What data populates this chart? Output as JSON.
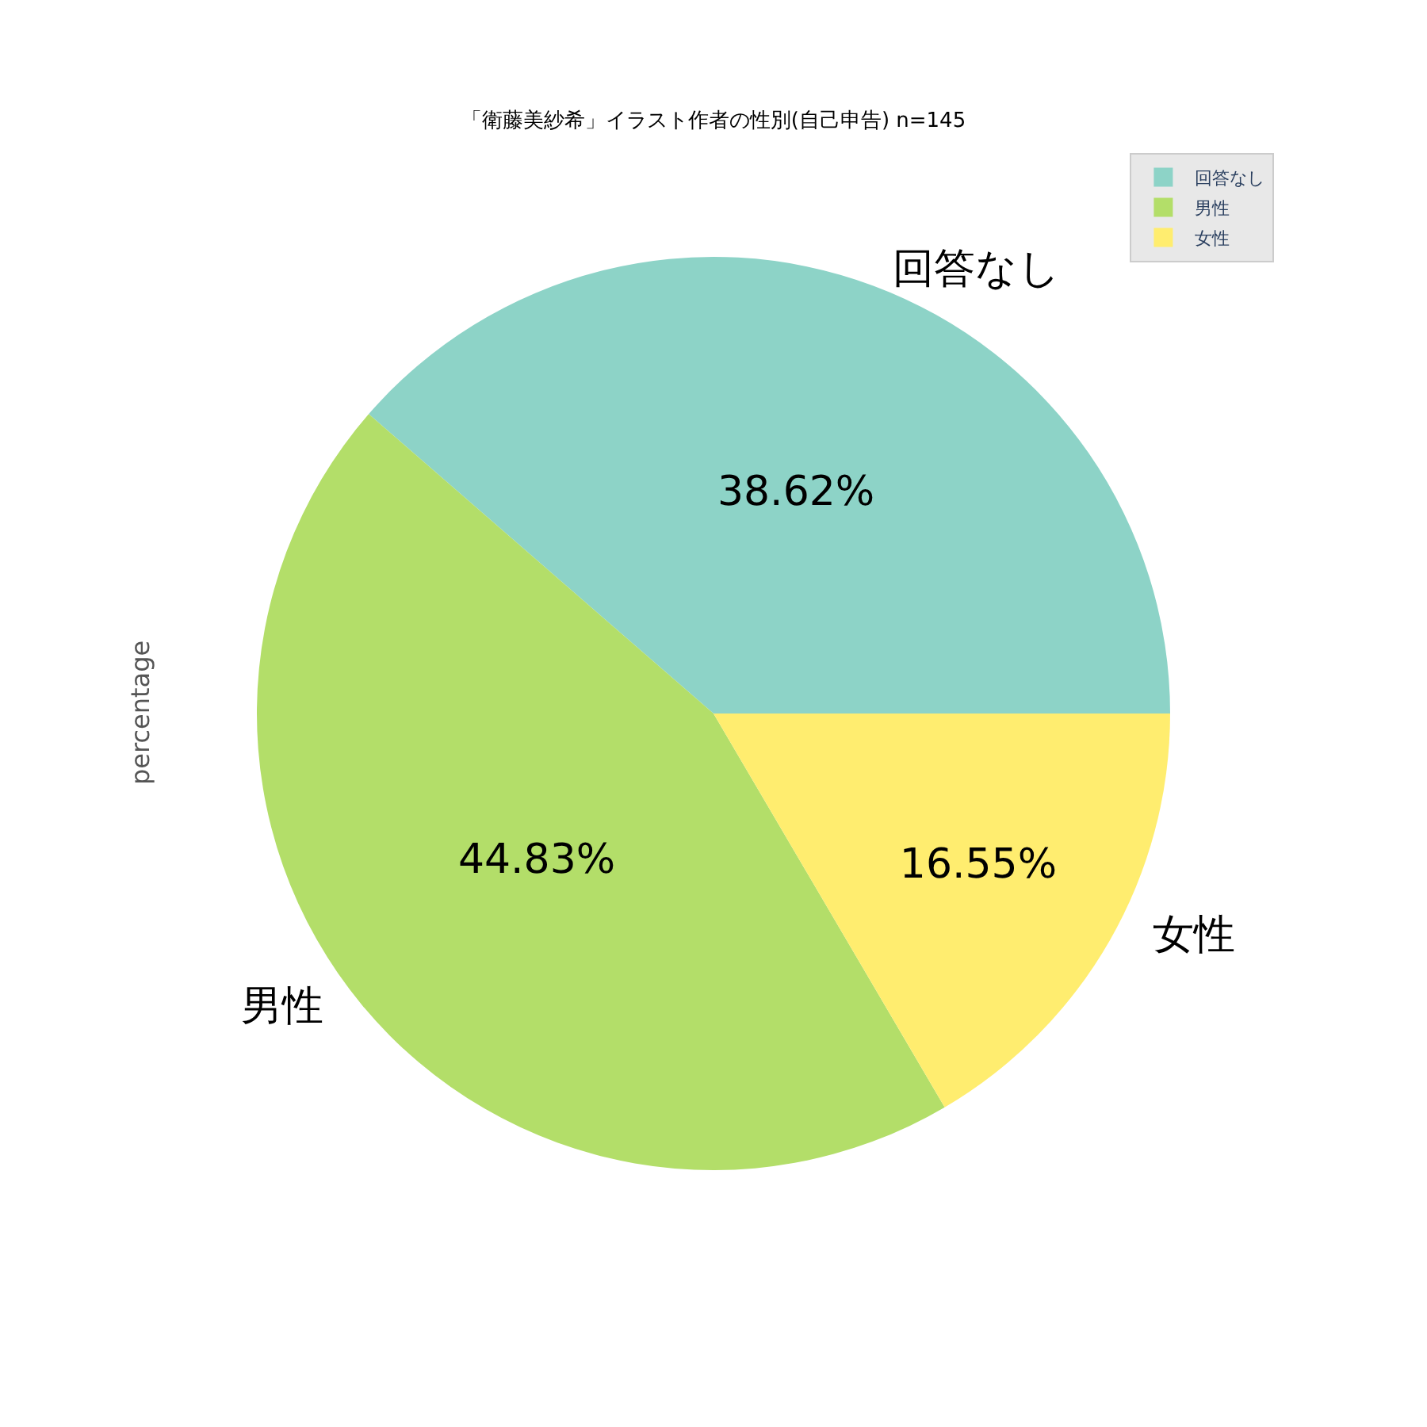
{
  "chart_data": {
    "type": "pie",
    "title": "「衛藤美紗希」イラスト作者の性別(自己申告) n=145",
    "ylabel": "percentage",
    "categories": [
      "回答なし",
      "男性",
      "女性"
    ],
    "values": [
      38.62,
      44.83,
      16.55
    ],
    "colors": [
      "#8dd3c7",
      "#b3de69",
      "#ffed6f"
    ],
    "value_labels": [
      "38.62%",
      "44.83%",
      "16.55%"
    ],
    "legend": "top right"
  }
}
